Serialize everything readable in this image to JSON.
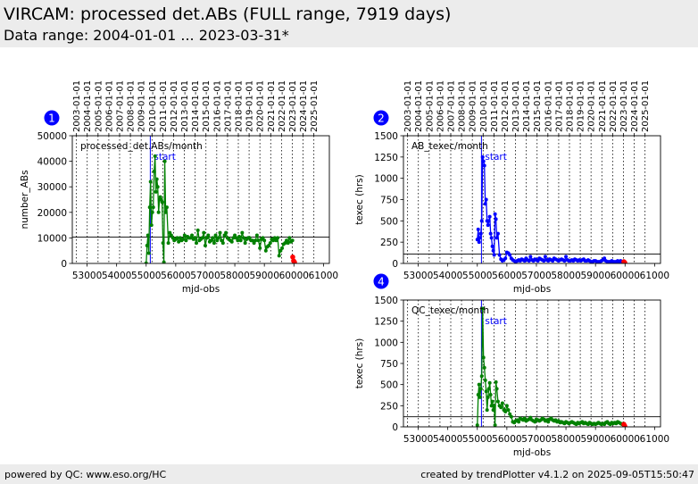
{
  "header": {
    "title": "VIRCAM: processed det.ABs (FULL range, 7919 days)",
    "subtitle": "Data range: 2004-01-01 ... 2023-03-31*"
  },
  "footer": {
    "left": "powered by QC: www.eso.org/HC",
    "right": "created by trendPlotter v4.1.2 on 2025-09-05T15:50:47"
  },
  "colors": {
    "series1": "#008000",
    "series2": "#0000ff",
    "series4": "#008000",
    "highlight": "#ff0000",
    "marker": "#0000ff"
  },
  "chart_data": [
    {
      "id": "1",
      "type": "line",
      "badge": "1",
      "xlabel": "mjd-obs",
      "ylabel": "number_ABs",
      "xlim": [
        52500,
        61200
      ],
      "ylim": [
        0,
        50000
      ],
      "xticks": [
        53000,
        54000,
        55000,
        56000,
        57000,
        58000,
        59000,
        60000,
        61000
      ],
      "xtick_labels": [
        "53000",
        "54000",
        "55000",
        "56000",
        "57000",
        "58000",
        "59000",
        "60000",
        "61000"
      ],
      "yticks": [
        0,
        10000,
        20000,
        30000,
        40000,
        50000
      ],
      "ytick_labels": [
        "0",
        "10000",
        "20000",
        "30000",
        "40000",
        "50000"
      ],
      "top_dates": [
        52640,
        53005,
        53371,
        53736,
        54101,
        54466,
        54832,
        55197,
        55562,
        55927,
        56293,
        56658,
        57023,
        57388,
        57754,
        58119,
        58484,
        58849,
        59215,
        59580,
        59945,
        60310,
        60676
      ],
      "top_date_labels": [
        "2003-01-01",
        "2004-01-01",
        "2005-01-01",
        "2006-01-01",
        "2007-01-01",
        "2008-01-01",
        "2009-01-01",
        "2010-01-01",
        "2011-01-01",
        "2012-01-01",
        "2013-01-01",
        "2014-01-01",
        "2015-01-01",
        "2016-01-01",
        "2017-01-01",
        "2018-01-01",
        "2019-01-01",
        "2020-01-01",
        "2021-01-01",
        "2022-01-01",
        "2023-01-01",
        "2024-01-01",
        "2025-01-01"
      ],
      "annotation": "processed_det.ABs/month",
      "start_label": "start",
      "start_x": 55140,
      "hline": 10300,
      "series": [
        {
          "name": "processed_det.ABs/month",
          "color": "#008000",
          "x": [
            55000,
            55030,
            55060,
            55090,
            55120,
            55150,
            55180,
            55210,
            55240,
            55270,
            55300,
            55330,
            55360,
            55390,
            55420,
            55450,
            55480,
            55510,
            55540,
            55570,
            55600,
            55630,
            55660,
            55700,
            55750,
            55800,
            55850,
            55900,
            55950,
            56000,
            56050,
            56100,
            56150,
            56200,
            56250,
            56300,
            56350,
            56400,
            56450,
            56500,
            56550,
            56600,
            56650,
            56700,
            56750,
            56800,
            56850,
            56900,
            56950,
            57000,
            57050,
            57100,
            57150,
            57200,
            57250,
            57300,
            57350,
            57400,
            57450,
            57500,
            57550,
            57600,
            57650,
            57700,
            57750,
            57800,
            57850,
            57900,
            57950,
            58000,
            58050,
            58100,
            58150,
            58200,
            58250,
            58300,
            58350,
            58400,
            58450,
            58500,
            58550,
            58600,
            58650,
            58700,
            58750,
            58800,
            58850,
            58900,
            58950,
            59000,
            59050,
            59100,
            59150,
            59200,
            59250,
            59300,
            59350,
            59400,
            59450,
            59500,
            59550,
            59600,
            59650,
            59700,
            59750,
            59800,
            59850,
            59900,
            59950
          ],
          "y": [
            100,
            7000,
            11000,
            4000,
            22000,
            32000,
            15000,
            20000,
            22000,
            36000,
            42000,
            28000,
            33000,
            30000,
            20000,
            25000,
            26000,
            25000,
            24000,
            8000,
            500,
            40000,
            20000,
            22000,
            8000,
            12000,
            11000,
            10000,
            9000,
            9500,
            10000,
            8500,
            10000,
            9000,
            9500,
            11000,
            9000,
            10500,
            10000,
            10000,
            11000,
            9500,
            10000,
            8000,
            13000,
            9000,
            9500,
            10000,
            12000,
            7000,
            10000,
            11000,
            8500,
            9000,
            10000,
            8000,
            11000,
            9000,
            10000,
            12000,
            9000,
            8000,
            11000,
            12000,
            10000,
            9500,
            9000,
            8500,
            10000,
            11000,
            10000,
            9000,
            10500,
            9000,
            12000,
            10000,
            8000,
            9500,
            10000,
            10000,
            9000,
            9000,
            8000,
            9000,
            11000,
            9000,
            6000,
            9500,
            10000,
            9000,
            5000,
            6500,
            7000,
            8000,
            9500,
            9000,
            10000,
            9000,
            10000,
            3000,
            5000,
            6000,
            7500,
            8000,
            9000,
            8000,
            10000,
            8500,
            9000
          ]
        }
      ],
      "highlight_points": {
        "x": [
          59960,
          59990,
          60020
        ],
        "y": [
          2500,
          1000,
          500
        ]
      }
    },
    {
      "id": "2",
      "type": "line",
      "badge": "2",
      "xlabel": "mjd-obs",
      "ylabel": "texec (hrs)",
      "xlim": [
        52500,
        61200
      ],
      "ylim": [
        0,
        1500
      ],
      "xticks": [
        53000,
        54000,
        55000,
        56000,
        57000,
        58000,
        59000,
        60000,
        61000
      ],
      "xtick_labels": [
        "53000",
        "54000",
        "55000",
        "56000",
        "57000",
        "58000",
        "59000",
        "60000",
        "61000"
      ],
      "yticks": [
        0,
        250,
        500,
        750,
        1000,
        1250,
        1500
      ],
      "ytick_labels": [
        "0",
        "250",
        "500",
        "750",
        "1000",
        "1250",
        "1500"
      ],
      "top_dates": [
        52640,
        53005,
        53371,
        53736,
        54101,
        54466,
        54832,
        55197,
        55562,
        55927,
        56293,
        56658,
        57023,
        57388,
        57754,
        58119,
        58484,
        58849,
        59215,
        59580,
        59945,
        60310,
        60676
      ],
      "top_date_labels": [
        "2003-01-01",
        "2004-01-01",
        "2005-01-01",
        "2006-01-01",
        "2007-01-01",
        "2008-01-01",
        "2009-01-01",
        "2010-01-01",
        "2011-01-01",
        "2012-01-01",
        "2013-01-01",
        "2014-01-01",
        "2015-01-01",
        "2016-01-01",
        "2017-01-01",
        "2018-01-01",
        "2019-01-01",
        "2020-01-01",
        "2021-01-01",
        "2022-01-01",
        "2023-01-01",
        "2024-01-01",
        "2025-01-01"
      ],
      "annotation": "AB_texec/month",
      "start_label": "start",
      "start_x": 55140,
      "hline": 110,
      "series": [
        {
          "name": "AB_texec/month",
          "color": "#0000ff",
          "x": [
            55000,
            55030,
            55060,
            55090,
            55120,
            55150,
            55180,
            55210,
            55240,
            55270,
            55300,
            55330,
            55360,
            55390,
            55420,
            55450,
            55480,
            55510,
            55540,
            55570,
            55600,
            55630,
            55660,
            55700,
            55750,
            55800,
            55850,
            55900,
            55950,
            56000,
            56050,
            56100,
            56150,
            56200,
            56250,
            56300,
            56350,
            56400,
            56450,
            56500,
            56550,
            56600,
            56650,
            56700,
            56750,
            56800,
            56850,
            56900,
            56950,
            57000,
            57050,
            57100,
            57150,
            57200,
            57250,
            57300,
            57350,
            57400,
            57450,
            57500,
            57550,
            57600,
            57650,
            57700,
            57750,
            57800,
            57850,
            57900,
            57950,
            58000,
            58050,
            58100,
            58150,
            58200,
            58250,
            58300,
            58350,
            58400,
            58450,
            58500,
            58550,
            58600,
            58650,
            58700,
            58750,
            58800,
            58850,
            58900,
            58950,
            59000,
            59050,
            59100,
            59150,
            59200,
            59250,
            59300,
            59350,
            59400,
            59450,
            59500,
            59550,
            59600,
            59650,
            59700,
            59750,
            59800,
            59850,
            59900,
            59950
          ],
          "y": [
            280,
            400,
            250,
            300,
            350,
            500,
            1250,
            1200,
            1150,
            700,
            750,
            500,
            450,
            500,
            550,
            350,
            300,
            200,
            150,
            100,
            580,
            520,
            300,
            350,
            100,
            50,
            30,
            40,
            60,
            130,
            120,
            100,
            60,
            40,
            30,
            20,
            30,
            40,
            30,
            50,
            40,
            30,
            60,
            40,
            30,
            80,
            40,
            30,
            50,
            40,
            30,
            60,
            50,
            40,
            30,
            80,
            40,
            30,
            50,
            40,
            30,
            60,
            50,
            40,
            30,
            40,
            50,
            40,
            30,
            80,
            40,
            30,
            30,
            40,
            30,
            50,
            40,
            30,
            40,
            30,
            40,
            50,
            30,
            30,
            40,
            30,
            20,
            20,
            30,
            30,
            20,
            20,
            20,
            30,
            40,
            60,
            30,
            20,
            20,
            20,
            30,
            20,
            20,
            20,
            30,
            20,
            30,
            20,
            20
          ]
        }
      ],
      "highlight_points": {
        "x": [
          59960,
          59990
        ],
        "y": [
          20,
          10
        ]
      }
    },
    {
      "id": "4",
      "type": "line",
      "badge": "4",
      "xlabel": "mjd-obs",
      "ylabel": "texec (hrs)",
      "xlim": [
        52500,
        61200
      ],
      "ylim": [
        0,
        1500
      ],
      "xticks": [
        53000,
        54000,
        55000,
        56000,
        57000,
        58000,
        59000,
        60000,
        61000
      ],
      "xtick_labels": [
        "53000",
        "54000",
        "55000",
        "56000",
        "57000",
        "58000",
        "59000",
        "60000",
        "61000"
      ],
      "yticks": [
        0,
        250,
        500,
        750,
        1000,
        1250,
        1500
      ],
      "ytick_labels": [
        "0",
        "250",
        "500",
        "750",
        "1000",
        "1250",
        "1500"
      ],
      "annotation": "QC_texec/month",
      "start_label": "start",
      "start_x": 55140,
      "hline": 120,
      "series": [
        {
          "name": "QC_texec/month",
          "color": "#008000",
          "x": [
            55000,
            55030,
            55060,
            55090,
            55120,
            55150,
            55180,
            55210,
            55240,
            55270,
            55300,
            55330,
            55360,
            55390,
            55420,
            55450,
            55480,
            55510,
            55540,
            55570,
            55600,
            55630,
            55660,
            55700,
            55750,
            55800,
            55850,
            55900,
            55950,
            56000,
            56050,
            56100,
            56150,
            56200,
            56250,
            56300,
            56350,
            56400,
            56450,
            56500,
            56550,
            56600,
            56650,
            56700,
            56750,
            56800,
            56850,
            56900,
            56950,
            57000,
            57050,
            57100,
            57150,
            57200,
            57250,
            57300,
            57350,
            57400,
            57450,
            57500,
            57550,
            57600,
            57650,
            57700,
            57750,
            57800,
            57850,
            57900,
            57950,
            58000,
            58050,
            58100,
            58150,
            58200,
            58250,
            58300,
            58350,
            58400,
            58450,
            58500,
            58550,
            58600,
            58650,
            58700,
            58750,
            58800,
            58850,
            58900,
            58950,
            59000,
            59050,
            59100,
            59150,
            59200,
            59250,
            59300,
            59350,
            59400,
            59450,
            59500,
            59550,
            59600,
            59650,
            59700,
            59750,
            59800,
            59850,
            59900,
            59950
          ],
          "y": [
            20,
            380,
            500,
            350,
            450,
            600,
            1400,
            820,
            700,
            550,
            420,
            200,
            350,
            450,
            520,
            380,
            250,
            300,
            200,
            250,
            20,
            530,
            450,
            300,
            250,
            230,
            280,
            200,
            180,
            250,
            200,
            150,
            120,
            60,
            50,
            70,
            80,
            60,
            100,
            90,
            80,
            100,
            70,
            80,
            90,
            110,
            80,
            70,
            60,
            90,
            80,
            70,
            80,
            100,
            90,
            70,
            80,
            60,
            90,
            100,
            80,
            70,
            80,
            60,
            70,
            50,
            60,
            50,
            40,
            60,
            50,
            40,
            50,
            60,
            50,
            40,
            30,
            50,
            40,
            50,
            60,
            40,
            50,
            40,
            30,
            50,
            40,
            30,
            40,
            30,
            40,
            50,
            40,
            30,
            40,
            30,
            50,
            60,
            40,
            30,
            50,
            40,
            50,
            40,
            60,
            50,
            40,
            30,
            40
          ]
        }
      ],
      "highlight_points": {
        "x": [
          59960,
          59990
        ],
        "y": [
          30,
          10
        ]
      }
    }
  ]
}
